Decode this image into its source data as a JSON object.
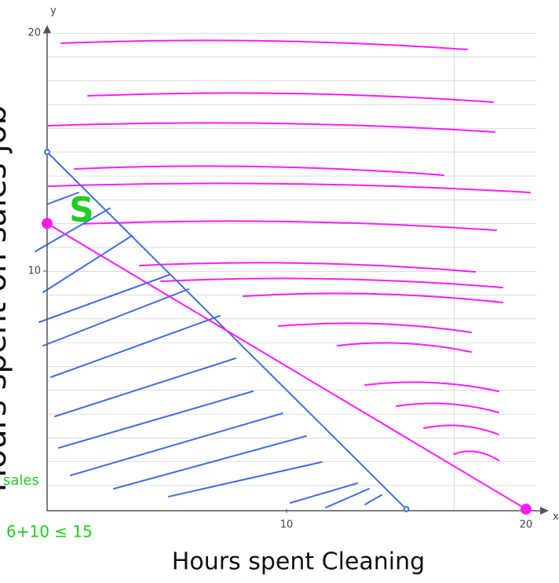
{
  "chart_data": {
    "type": "line",
    "xlabel": "Hours spent Cleaning",
    "ylabel": "Hours spent on sales job",
    "x_axis_name": "x",
    "y_axis_name": "y",
    "xlim": [
      0,
      20
    ],
    "ylim": [
      0,
      20
    ],
    "xticks": [
      10,
      20
    ],
    "yticks": [
      10,
      20
    ],
    "grid": true,
    "series": [
      {
        "color": "#3f6fe0",
        "x": [
          0,
          15
        ],
        "values": [
          15,
          0
        ]
      },
      {
        "color": "#ff1aff",
        "x": [
          0,
          20
        ],
        "values": [
          12,
          0
        ]
      }
    ],
    "annotations": [
      {
        "text": "S",
        "color": "#22cc22"
      },
      {
        "text": "sales",
        "color": "#22cc22"
      },
      {
        "text": "6+10 ≤ 15",
        "color": "#22cc22"
      }
    ]
  }
}
